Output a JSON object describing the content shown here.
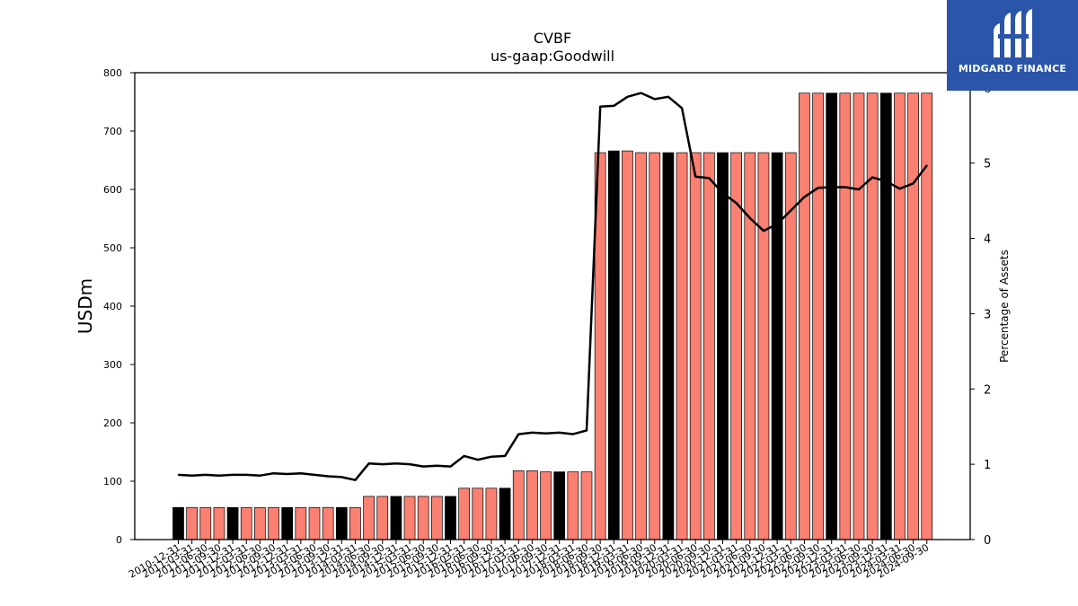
{
  "chart_data": {
    "type": "bar",
    "title": "CVBF",
    "subtitle": "us-gaap:Goodwill",
    "ylabel": "USDm",
    "y2label": "Percentage of Assets",
    "ylim": [
      0,
      800
    ],
    "y2lim": [
      0,
      6.2
    ],
    "yticks": [
      0,
      100,
      200,
      300,
      400,
      500,
      600,
      700,
      800
    ],
    "y2ticks": [
      0,
      1,
      2,
      3,
      4,
      5,
      6
    ],
    "categories": [
      "2010-12-31",
      "2011-03-31",
      "2011-06-30",
      "2011-09-30",
      "2011-12-31",
      "2012-03-31",
      "2012-06-30",
      "2012-09-30",
      "2012-12-31",
      "2013-03-31",
      "2013-06-30",
      "2013-09-30",
      "2013-12-31",
      "2014-03-31",
      "2014-06-30",
      "2014-09-30",
      "2014-12-31",
      "2015-03-31",
      "2015-06-30",
      "2015-09-30",
      "2015-12-31",
      "2016-03-31",
      "2016-06-30",
      "2016-09-30",
      "2016-12-31",
      "2017-03-31",
      "2017-06-30",
      "2017-09-30",
      "2017-12-31",
      "2018-03-31",
      "2018-06-30",
      "2018-09-30",
      "2018-12-31",
      "2019-03-31",
      "2019-06-30",
      "2019-09-30",
      "2019-12-31",
      "2020-03-31",
      "2020-06-30",
      "2020-09-30",
      "2020-12-31",
      "2021-03-31",
      "2021-06-30",
      "2021-09-30",
      "2021-12-31",
      "2022-03-31",
      "2022-06-30",
      "2022-09-30",
      "2022-12-31",
      "2023-03-31",
      "2023-06-30",
      "2023-09-30",
      "2023-12-31",
      "2024-03-31",
      "2024-06-30",
      "2024-09-30"
    ],
    "series": [
      {
        "type": "bar",
        "values": [
          55,
          55,
          55,
          55,
          55,
          55,
          55,
          55,
          55,
          55,
          55,
          55,
          55,
          55,
          74,
          74,
          74,
          74,
          74,
          74,
          74,
          88,
          88,
          88,
          88,
          118,
          118,
          116,
          116,
          116,
          116,
          663,
          666,
          666,
          663,
          663,
          663,
          663,
          663,
          663,
          663,
          663,
          663,
          663,
          663,
          663,
          765,
          765,
          765,
          765,
          765,
          765,
          765,
          765,
          765,
          765
        ],
        "highlight": [
          true,
          false,
          false,
          false,
          true,
          false,
          false,
          false,
          true,
          false,
          false,
          false,
          true,
          false,
          false,
          false,
          true,
          false,
          false,
          false,
          true,
          false,
          false,
          false,
          true,
          false,
          false,
          false,
          true,
          false,
          false,
          false,
          true,
          false,
          false,
          false,
          true,
          false,
          false,
          false,
          true,
          false,
          false,
          false,
          true,
          false,
          false,
          false,
          true,
          false,
          false,
          false,
          true,
          false,
          false,
          false
        ],
        "color": "#fa8072",
        "highlight_color": "#000000"
      },
      {
        "type": "line",
        "axis": "right",
        "values": [
          0.86,
          0.85,
          0.86,
          0.85,
          0.86,
          0.86,
          0.85,
          0.88,
          0.87,
          0.88,
          0.86,
          0.84,
          0.83,
          0.79,
          1.01,
          1.0,
          1.01,
          1.0,
          0.97,
          0.98,
          0.97,
          1.11,
          1.06,
          1.1,
          1.11,
          1.4,
          1.42,
          1.41,
          1.42,
          1.4,
          1.45,
          5.75,
          5.76,
          5.88,
          5.93,
          5.85,
          5.88,
          5.73,
          4.82,
          4.8,
          4.6,
          4.47,
          4.27,
          4.1,
          4.19,
          4.37,
          4.55,
          4.67,
          4.68,
          4.68,
          4.65,
          4.81,
          4.76,
          4.66,
          4.73,
          4.97
        ],
        "color": "#000000"
      }
    ]
  },
  "logo": {
    "name": "MIDGARD FINANCE",
    "color": "#2a55a8"
  }
}
